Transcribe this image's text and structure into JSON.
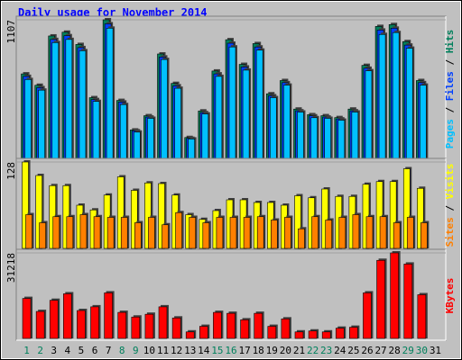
{
  "title": "Daily usage for November 2014",
  "legend_separator": " / ",
  "x_labels": {
    "categories": [
      "1",
      "2",
      "3",
      "4",
      "5",
      "6",
      "7",
      "8",
      "9",
      "10",
      "11",
      "12",
      "13",
      "14",
      "15",
      "16",
      "17",
      "18",
      "19",
      "20",
      "21",
      "22",
      "23",
      "24",
      "25",
      "26",
      "27",
      "28",
      "29",
      "30",
      "31"
    ],
    "colors": [
      "#00805c",
      "#00805c",
      "#000000",
      "#000000",
      "#000000",
      "#000000",
      "#000000",
      "#00805c",
      "#00805c",
      "#000000",
      "#000000",
      "#000000",
      "#000000",
      "#000000",
      "#00805c",
      "#00805c",
      "#000000",
      "#000000",
      "#000000",
      "#000000",
      "#000000",
      "#00805c",
      "#00805c",
      "#000000",
      "#000000",
      "#000000",
      "#000000",
      "#000000",
      "#00805c",
      "#00805c",
      "#000000"
    ]
  },
  "chart_data": [
    {
      "type": "bar",
      "ylim": [
        0,
        1107
      ],
      "yticks": [
        1107
      ],
      "series": [
        {
          "name": "Pages",
          "color": "#00c0ff",
          "values": [
            630,
            545,
            925,
            950,
            860,
            455,
            1040,
            430,
            210,
            320,
            790,
            560,
            155,
            355,
            655,
            890,
            705,
            865,
            485,
            585,
            370,
            325,
            320,
            305,
            370,
            700,
            990,
            1005,
            880,
            585,
            null
          ]
        },
        {
          "name": "Files",
          "color": "#0040ff",
          "values": [
            655,
            565,
            950,
            980,
            885,
            470,
            1075,
            450,
            220,
            330,
            810,
            580,
            160,
            365,
            675,
            920,
            730,
            890,
            500,
            605,
            380,
            340,
            330,
            315,
            380,
            720,
            1025,
            1040,
            905,
            605,
            null
          ]
        },
        {
          "name": "Hits",
          "color": "#00805c",
          "values": [
            675,
            584,
            978,
            1008,
            910,
            485,
            1107,
            463,
            227,
            341,
            834,
            599,
            167,
            379,
            698,
            948,
            751,
            917,
            516,
            622,
            394,
            349,
            341,
            326,
            394,
            743,
            1054,
            1069,
            933,
            622,
            null
          ]
        }
      ]
    },
    {
      "type": "bar",
      "ylim": [
        0,
        128
      ],
      "yticks": [
        128
      ],
      "series": [
        {
          "name": "Sites",
          "color": "#ff8000",
          "values": [
            50,
            38,
            47,
            47,
            50,
            47,
            46,
            46,
            38,
            46,
            35,
            53,
            46,
            38,
            46,
            46,
            46,
            47,
            42,
            46,
            29,
            47,
            42,
            46,
            50,
            47,
            47,
            38,
            46,
            38,
            null
          ]
        },
        {
          "name": "Visits",
          "color": "#ffff00",
          "values": [
            128,
            108,
            93,
            93,
            64,
            57,
            79,
            106,
            86,
            97,
            96,
            79,
            50,
            43,
            56,
            72,
            72,
            68,
            68,
            64,
            78,
            75,
            88,
            77,
            77,
            95,
            99,
            99,
            118,
            89,
            null
          ]
        }
      ]
    },
    {
      "type": "bar",
      "ylim": [
        0,
        31218
      ],
      "yticks": [
        31218
      ],
      "series": [
        {
          "name": "KBytes",
          "color": "#ff0000",
          "values": [
            14591,
            9840,
            13912,
            16288,
            10180,
            11537,
            16627,
            9501,
            7805,
            8822,
            11537,
            7465,
            2375,
            4411,
            9501,
            9162,
            6786,
            9162,
            4411,
            7126,
            2375,
            2715,
            2375,
            3733,
            4072,
            16627,
            28503,
            31218,
            27146,
            15948,
            null
          ]
        }
      ]
    }
  ]
}
